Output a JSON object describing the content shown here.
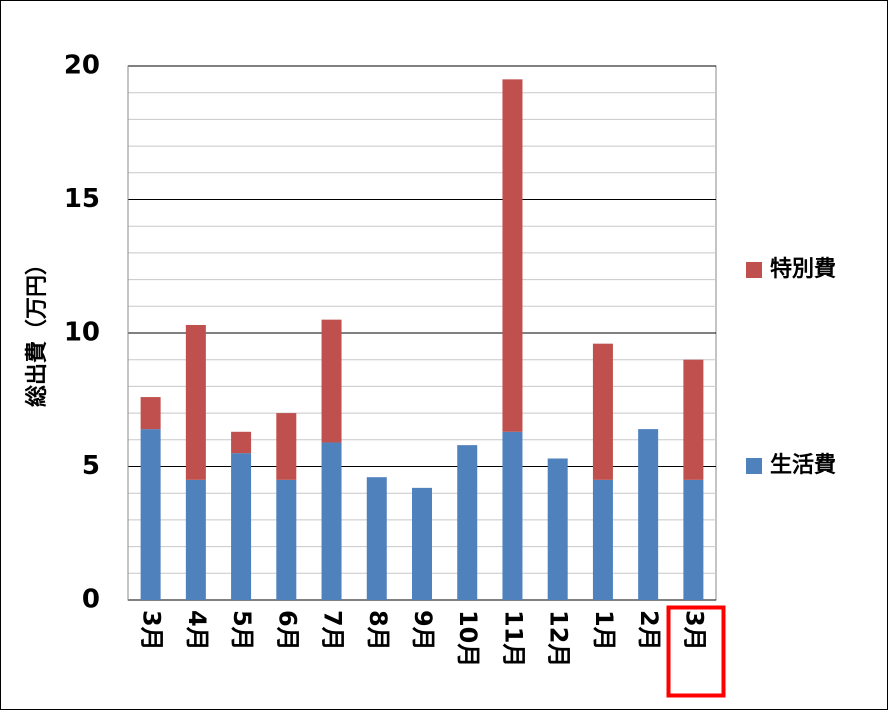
{
  "chart_data": {
    "type": "stacked_bar",
    "y_label": "総出費（万円）",
    "categories": [
      "3月",
      "4月",
      "5月",
      "6月",
      "7月",
      "8月",
      "9月",
      "10月",
      "11月",
      "12月",
      "1月",
      "2月",
      "3月"
    ],
    "series": [
      {
        "name": "生活費",
        "color": "#4f81bd",
        "values": [
          6.4,
          4.5,
          5.5,
          4.5,
          5.9,
          4.6,
          4.2,
          5.8,
          6.3,
          5.3,
          4.5,
          6.4,
          4.5
        ]
      },
      {
        "name": "特別費",
        "color": "#c0504d",
        "values": [
          1.2,
          5.8,
          0.8,
          2.5,
          4.6,
          0,
          0,
          0,
          13.2,
          0,
          5.1,
          0,
          4.5
        ]
      }
    ],
    "ylim": [
      0,
      20
    ],
    "yticks": [
      0,
      5,
      10,
      15,
      20
    ],
    "grid": true
  }
}
